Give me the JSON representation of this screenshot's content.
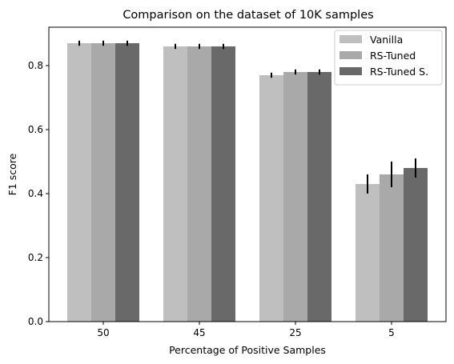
{
  "chart_data": {
    "type": "bar",
    "title": "Comparison on the dataset of 10K samples",
    "xlabel": "Percentage of Positive Samples",
    "ylabel": "F1 score",
    "categories": [
      "50",
      "45",
      "25",
      "5"
    ],
    "ylim": [
      0,
      0.92
    ],
    "yticks": [
      0.0,
      0.2,
      0.4,
      0.6,
      0.8
    ],
    "ytick_labels": [
      "0.0",
      "0.2",
      "0.4",
      "0.6",
      "0.8"
    ],
    "grid": false,
    "legend_position": "top-right",
    "series": [
      {
        "name": "Vanilla",
        "color": "#bfbfbf",
        "values": [
          0.87,
          0.86,
          0.77,
          0.43
        ],
        "errors": [
          0.008,
          0.008,
          0.008,
          0.03
        ]
      },
      {
        "name": "RS-Tuned",
        "color": "#a9a9a9",
        "values": [
          0.87,
          0.86,
          0.78,
          0.46
        ],
        "errors": [
          0.008,
          0.008,
          0.008,
          0.04
        ]
      },
      {
        "name": "RS-Tuned S.",
        "color": "#696969",
        "values": [
          0.87,
          0.86,
          0.78,
          0.48
        ],
        "errors": [
          0.008,
          0.008,
          0.008,
          0.03
        ]
      }
    ]
  }
}
